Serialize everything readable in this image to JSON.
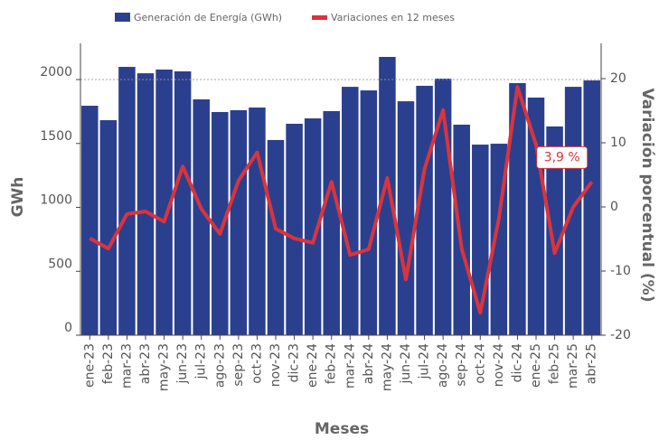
{
  "chart_data": {
    "type": "bar_line",
    "x_label": "Meses",
    "y_label": "GWh",
    "y2_label": "Variación porcentual (%)",
    "categories": [
      "ene-23",
      "feb-23",
      "mar-23",
      "abr-23",
      "may-23",
      "jun-23",
      "jul-23",
      "ago-23",
      "sep-23",
      "oct-23",
      "nov-23",
      "dic-23",
      "ene-24",
      "feb-24",
      "mar-24",
      "abr-24",
      "may-24",
      "jun-24",
      "jul-24",
      "ago-24",
      "sep-24",
      "oct-24",
      "nov-24",
      "dic-24",
      "ene-25",
      "feb-25",
      "mar-25",
      "abr-25"
    ],
    "series": [
      {
        "name": "Generación de Energía (GWh)",
        "type": "bar",
        "color": "#2b3f8f",
        "values": [
          1795,
          1682,
          2099,
          2049,
          2078,
          2064,
          1845,
          1746,
          1760,
          1781,
          1527,
          1654,
          1696,
          1753,
          1943,
          1915,
          2177,
          1830,
          1951,
          2007,
          1647,
          1491,
          1498,
          1972,
          1859,
          1633,
          1943,
          1993
        ]
      },
      {
        "name": "Variaciones en 12 meses",
        "type": "line",
        "axis": "y2",
        "color": "#d9343d",
        "values": [
          -4.9,
          -6.5,
          -1.1,
          -0.7,
          -2.3,
          6.3,
          -0.3,
          -4.2,
          4.1,
          8.5,
          -3.4,
          -4.9,
          -5.6,
          3.9,
          -7.5,
          -6.6,
          4.5,
          -11.3,
          5.9,
          15.1,
          -6.5,
          -16.5,
          -1.8,
          18.7,
          9.7,
          -7.2,
          0,
          3.9
        ],
        "value_labels": [
          null,
          null,
          null,
          null,
          null,
          null,
          null,
          null,
          null,
          null,
          null,
          null,
          null,
          null,
          null,
          null,
          null,
          null,
          null,
          null,
          null,
          null,
          null,
          null,
          null,
          null,
          null,
          "3,9 %"
        ]
      }
    ],
    "ylim": [
      0,
      2283
    ],
    "yticks": [
      0,
      500,
      1000,
      1500,
      2000
    ],
    "y2lim": [
      -20,
      25.5
    ],
    "y2ticks": [
      -20,
      -10,
      0,
      10,
      20
    ],
    "hline": 2000
  }
}
